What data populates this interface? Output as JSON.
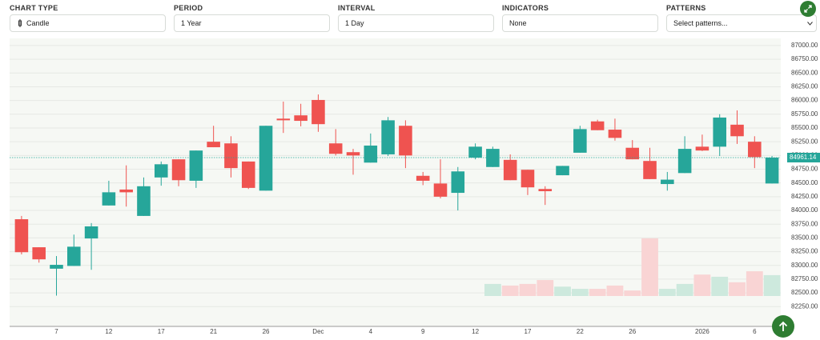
{
  "controls": [
    {
      "label": "CHART TYPE",
      "value": "Candle"
    },
    {
      "label": "PERIOD",
      "value": "1 Year"
    },
    {
      "label": "INTERVAL",
      "value": "1 Day"
    },
    {
      "label": "INDICATORS",
      "value": "None"
    },
    {
      "label": "PATTERNS",
      "value": "Select patterns..."
    }
  ],
  "chart_data": {
    "type": "candlestick",
    "categories": [
      null,
      null,
      "7",
      null,
      null,
      "12",
      null,
      null,
      "17",
      null,
      null,
      "21",
      null,
      null,
      "26",
      null,
      null,
      "Dec",
      null,
      null,
      "4",
      null,
      null,
      "9",
      null,
      null,
      "12",
      null,
      null,
      "17",
      null,
      null,
      "22",
      null,
      null,
      "26",
      null,
      null,
      null,
      "2026",
      null,
      null,
      "6",
      null
    ],
    "open": [
      83840,
      83330,
      82940,
      82990,
      83490,
      84090,
      84380,
      83900,
      84600,
      84930,
      84540,
      85250,
      85220,
      84890,
      84360,
      85670,
      85730,
      86010,
      85220,
      85060,
      84870,
      85020,
      85540,
      84630,
      84490,
      84320,
      84960,
      84790,
      84920,
      84740,
      84390,
      84640,
      85050,
      85620,
      85470,
      85140,
      84900,
      84480,
      84680,
      85160,
      85160,
      85560,
      85250,
      84490
    ],
    "high": [
      83900,
      83330,
      83170,
      83560,
      83770,
      84540,
      84820,
      84600,
      84890,
      84930,
      85090,
      85540,
      85350,
      84890,
      85540,
      85980,
      85940,
      86110,
      85480,
      85120,
      85400,
      85700,
      85640,
      84700,
      84930,
      84790,
      85220,
      85160,
      85020,
      84740,
      84440,
      84810,
      85540,
      85650,
      85670,
      85280,
      85140,
      84700,
      85350,
      85380,
      85750,
      85820,
      85350,
      84990
    ],
    "low": [
      83200,
      83050,
      82450,
      82990,
      82920,
      84090,
      84070,
      83900,
      84450,
      84440,
      84410,
      85150,
      84600,
      84390,
      84360,
      85410,
      85530,
      85430,
      85000,
      84650,
      84870,
      84990,
      84770,
      84460,
      84220,
      84000,
      84930,
      84790,
      84550,
      84280,
      84100,
      84640,
      85050,
      85460,
      85270,
      84930,
      84570,
      84360,
      84680,
      85080,
      84990,
      85210,
      84770,
      84490
    ],
    "close": [
      83240,
      83110,
      83010,
      83340,
      83710,
      84330,
      84330,
      84440,
      84840,
      84550,
      85090,
      85150,
      84770,
      84410,
      85540,
      85640,
      85630,
      85570,
      85030,
      85000,
      85180,
      85640,
      85000,
      84540,
      84250,
      84710,
      85160,
      85120,
      84550,
      84420,
      84350,
      84810,
      85480,
      85460,
      85320,
      84930,
      84570,
      84560,
      85120,
      85090,
      85690,
      85350,
      84970,
      84961.14
    ],
    "volume": [
      null,
      null,
      null,
      null,
      null,
      null,
      null,
      null,
      null,
      null,
      null,
      null,
      null,
      null,
      null,
      null,
      null,
      null,
      null,
      null,
      null,
      null,
      null,
      null,
      null,
      null,
      null,
      220,
      190,
      220,
      290,
      170,
      130,
      130,
      190,
      100,
      1050,
      130,
      220,
      390,
      350,
      250,
      450,
      380
    ],
    "up_color": "#26a69a",
    "down_color": "#ef5350",
    "volume_up_color": "#cde9dd",
    "volume_down_color": "#f9d4d4",
    "last_price": 84961.14,
    "ylim": [
      81890,
      87130
    ],
    "yticks": [
      {
        "value": 82250,
        "label": "82250.00"
      },
      {
        "value": 82500,
        "label": "82500.00"
      },
      {
        "value": 82750,
        "label": "82750.00"
      },
      {
        "value": 83000,
        "label": "83000.00"
      },
      {
        "value": 83250,
        "label": "83250.00"
      },
      {
        "value": 83500,
        "label": "83500.00"
      },
      {
        "value": 83750,
        "label": "83750.00"
      },
      {
        "value": 84000,
        "label": "84000.00"
      },
      {
        "value": 84250,
        "label": "84250.00"
      },
      {
        "value": 84500,
        "label": "84500.00"
      },
      {
        "value": 84750,
        "label": "84750.00"
      },
      {
        "value": 85000,
        "label": "85000.00"
      },
      {
        "value": 85250,
        "label": "85250.00"
      },
      {
        "value": 85500,
        "label": "85500.00"
      },
      {
        "value": 85750,
        "label": "85750.00"
      },
      {
        "value": 86000,
        "label": "86000.00"
      },
      {
        "value": 86250,
        "label": "86250.00"
      },
      {
        "value": 86500,
        "label": "86500.00"
      },
      {
        "value": 86750,
        "label": "86750.00"
      },
      {
        "value": 87000,
        "label": "87000.00"
      }
    ],
    "grid": true
  }
}
